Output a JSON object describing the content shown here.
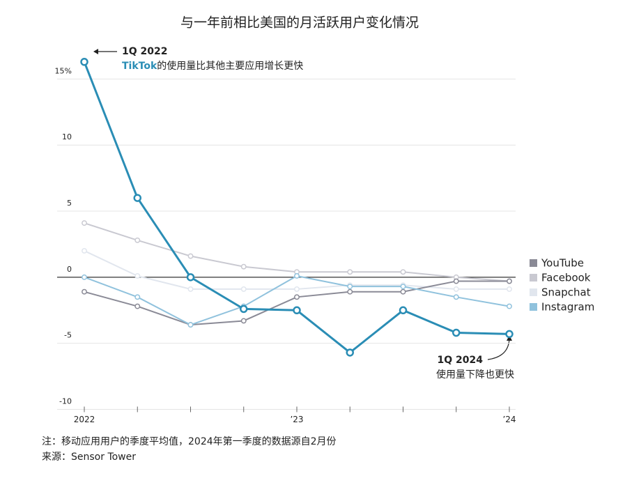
{
  "chart_data": {
    "type": "line",
    "title": "与一年前相比美国的月活跃用户变化情况",
    "categories": [
      "2022",
      null,
      null,
      null,
      "’23",
      null,
      null,
      null,
      "’24"
    ],
    "series": [
      {
        "name": "YouTube",
        "color": "#8a8a96",
        "values": [
          -1.1,
          -2.2,
          -3.6,
          -3.3,
          -1.5,
          -1.1,
          -1.1,
          -0.3,
          -0.3
        ]
      },
      {
        "name": "Facebook",
        "color": "#c9c9d1",
        "values": [
          4.1,
          2.8,
          1.6,
          0.8,
          0.4,
          0.4,
          0.4,
          0.0,
          -0.3
        ]
      },
      {
        "name": "Snapchat",
        "color": "#e1e6ee",
        "values": [
          2.0,
          0.1,
          -0.9,
          -0.9,
          -0.9,
          -0.6,
          -0.6,
          -0.9,
          -0.9
        ]
      },
      {
        "name": "Instagram",
        "color": "#90c2dd",
        "values": [
          0.0,
          -1.5,
          -3.6,
          -2.2,
          0.1,
          -0.7,
          -0.7,
          -1.5,
          -2.2
        ]
      },
      {
        "name": "TikTok",
        "color": "#2a8db5",
        "in_legend": false,
        "values": [
          16.3,
          6.0,
          0.0,
          -2.4,
          -2.5,
          -5.7,
          -2.5,
          -4.2,
          -4.3
        ]
      }
    ],
    "ylim": [
      -10,
      17
    ],
    "yticks": [
      {
        "value": 15,
        "label": "15%"
      },
      10,
      5,
      0,
      -5,
      -10
    ],
    "grid": true,
    "legend": "right",
    "annotations": [
      {
        "title": "1Q 2022",
        "text": "的使用量比其他主要应用增长更快"
      },
      {
        "title": "1Q 2024",
        "text": "使用量下降也更快"
      }
    ],
    "notes": [
      "注：移动应用用户的季度平均值，2024年第一季度的数据源自2月份",
      "来源：Sensor Tower"
    ]
  }
}
